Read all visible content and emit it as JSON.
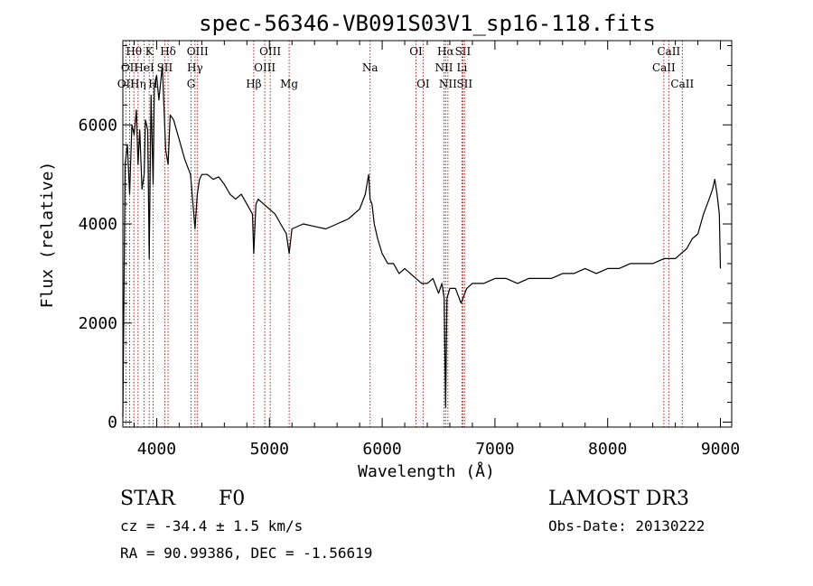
{
  "chart_data": {
    "type": "line",
    "title": "spec-56346-VB091S03V1_sp16-118.fits",
    "xlabel": "Wavelength (Å)",
    "ylabel": "Flux (relative)",
    "xlim": [
      3700,
      9100
    ],
    "ylim": [
      -100,
      7700
    ],
    "xticks": [
      4000,
      5000,
      6000,
      7000,
      8000,
      9000
    ],
    "yticks": [
      0,
      2000,
      4000,
      6000
    ],
    "grid": false,
    "line_color": "#000000",
    "marker_color": "#b22222",
    "series": [
      {
        "x": [
          3700,
          3720,
          3740,
          3760,
          3780,
          3800,
          3820,
          3835,
          3850,
          3870,
          3889,
          3900,
          3920,
          3934,
          3950,
          3968,
          3980,
          4000,
          4020,
          4050,
          4080,
          4101,
          4120,
          4150,
          4200,
          4250,
          4300,
          4340,
          4360,
          4380,
          4400,
          4450,
          4500,
          4550,
          4600,
          4650,
          4700,
          4750,
          4800,
          4850,
          4861,
          4880,
          4900,
          4950,
          5000,
          5050,
          5100,
          5150,
          5175,
          5200,
          5300,
          5400,
          5500,
          5600,
          5700,
          5800,
          5850,
          5880,
          5893,
          5910,
          5930,
          5960,
          6000,
          6050,
          6100,
          6150,
          6200,
          6250,
          6300,
          6350,
          6400,
          6450,
          6500,
          6530,
          6550,
          6563,
          6575,
          6600,
          6650,
          6700,
          6750,
          6800,
          6900,
          7000,
          7100,
          7200,
          7300,
          7400,
          7500,
          7600,
          7700,
          7800,
          7900,
          8000,
          8100,
          8200,
          8300,
          8400,
          8500,
          8550,
          8600,
          8650,
          8700,
          8750,
          8800,
          8850,
          8900,
          8930,
          8950,
          8970,
          8990,
          9000
        ],
        "y": [
          100,
          5200,
          5600,
          4600,
          6000,
          5800,
          6300,
          5200,
          5900,
          4700,
          5000,
          6100,
          5900,
          3300,
          6600,
          4800,
          6800,
          7000,
          6500,
          7200,
          5500,
          5200,
          6200,
          6100,
          5700,
          5300,
          5000,
          3900,
          4600,
          4900,
          5000,
          5000,
          4900,
          4950,
          4800,
          4600,
          4500,
          4600,
          4400,
          4200,
          3400,
          4400,
          4500,
          4400,
          4300,
          4200,
          4000,
          3800,
          3400,
          3900,
          4000,
          3950,
          3900,
          4000,
          4100,
          4300,
          4600,
          5000,
          4500,
          4400,
          4000,
          3700,
          3400,
          3200,
          3200,
          3000,
          3100,
          3000,
          2900,
          2800,
          2800,
          2900,
          2600,
          2800,
          2500,
          300,
          2500,
          2700,
          2700,
          2400,
          2700,
          2800,
          2800,
          2900,
          2900,
          2800,
          2900,
          2900,
          2900,
          3000,
          3000,
          3100,
          3000,
          3100,
          3100,
          3200,
          3200,
          3200,
          3300,
          3300,
          3300,
          3400,
          3500,
          3700,
          3800,
          4200,
          4500,
          4700,
          4900,
          4600,
          4200,
          3100
        ]
      }
    ],
    "lines": [
      {
        "label": "OII",
        "x": 3727,
        "row": 3
      },
      {
        "label": "Hθ",
        "x": 3798,
        "row": 1
      },
      {
        "label": "OII",
        "x": 3760,
        "row": 2
      },
      {
        "label": "Hη",
        "x": 3835,
        "row": 3
      },
      {
        "label": "HeI",
        "x": 3889,
        "row": 2
      },
      {
        "label": "K",
        "x": 3934,
        "row": 1
      },
      {
        "label": "H",
        "x": 3968,
        "row": 3
      },
      {
        "label": "Hδ",
        "x": 4101,
        "row": 1
      },
      {
        "label": "SII",
        "x": 4072,
        "row": 2
      },
      {
        "label": "OIII",
        "x": 4363,
        "row": 1
      },
      {
        "label": "Hγ",
        "x": 4340,
        "row": 2
      },
      {
        "label": "G",
        "x": 4305,
        "row": 3
      },
      {
        "label": "Hβ",
        "x": 4861,
        "row": 3
      },
      {
        "label": "OIII",
        "x": 5007,
        "row": 1
      },
      {
        "label": "OIII",
        "x": 4959,
        "row": 2
      },
      {
        "label": "Mg",
        "x": 5175,
        "row": 3
      },
      {
        "label": "Na",
        "x": 5893,
        "row": 2
      },
      {
        "label": "OI",
        "x": 6300,
        "row": 1
      },
      {
        "label": "OI",
        "x": 6363,
        "row": 3
      },
      {
        "label": "Hα",
        "x": 6563,
        "row": 1
      },
      {
        "label": "NII",
        "x": 6548,
        "row": 2
      },
      {
        "label": "NII",
        "x": 6583,
        "row": 3
      },
      {
        "label": "SII",
        "x": 6716,
        "row": 1
      },
      {
        "label": "Li",
        "x": 6708,
        "row": 2
      },
      {
        "label": "SII",
        "x": 6731,
        "row": 3
      },
      {
        "label": "CaII",
        "x": 8542,
        "row": 1
      },
      {
        "label": "CaII",
        "x": 8498,
        "row": 2
      },
      {
        "label": "CaII",
        "x": 8662,
        "row": 3
      }
    ]
  },
  "info": {
    "class": "STAR",
    "subclass": "F0",
    "survey": "LAMOST DR3",
    "cz": "cz = -34.4 ± 1.5 km/s",
    "obsdate": "Obs-Date: 20130222",
    "coords": "RA =  90.99386, DEC =  -1.56619"
  }
}
